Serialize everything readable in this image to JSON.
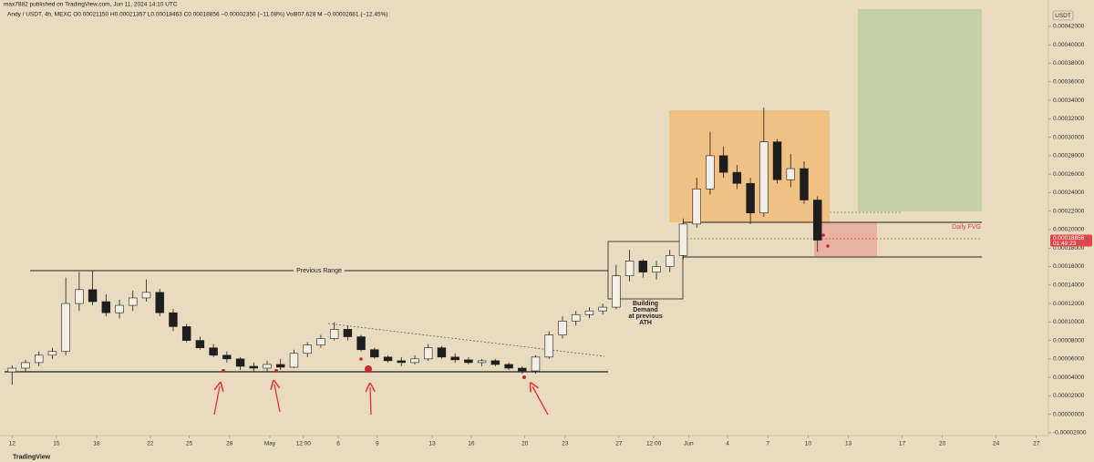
{
  "header": {
    "publisher": "max7882 published on TradingView.com, Jun 11, 2024 14:10 UTC",
    "legend": "Andy / USDT, 4h, MEXC  O0.00021150  H0.00021357  L0.00018463  C0.00018856  −0.00002350 (−11.08%)  Vol807.628 M  −0.00002681 (−12.45%)",
    "currency": "USDT",
    "brand": "TradingView"
  },
  "chart_data": {
    "type": "candlestick",
    "x": [
      0,
      1,
      2,
      3,
      4,
      5,
      6,
      7,
      8,
      9,
      10,
      11,
      12,
      13,
      14,
      15,
      16,
      17,
      18,
      19,
      20,
      21,
      22,
      23,
      24,
      25,
      26,
      27,
      28,
      29,
      30,
      31,
      32,
      33,
      34,
      35,
      36,
      37,
      38,
      39,
      40,
      41,
      42,
      43,
      44,
      45,
      46,
      47,
      48,
      49,
      50,
      51,
      52,
      53,
      54,
      55,
      56,
      57,
      58,
      59,
      60
    ],
    "open": [
      4.6e-05,
      5e-05,
      5.6e-05,
      6.4e-05,
      6.8e-05,
      0.00012,
      0.000135,
      0.000122,
      0.00011,
      0.000118,
      0.000126,
      0.000132,
      0.00011,
      9.5e-05,
      8e-05,
      7.2e-05,
      6.4e-05,
      6e-05,
      5.2e-05,
      5e-05,
      5.4e-05,
      5.1e-05,
      6.6e-05,
      7.5e-05,
      8.2e-05,
      9.2e-05,
      8.4e-05,
      7e-05,
      6.2e-05,
      5.8e-05,
      5.6e-05,
      6e-05,
      7.2e-05,
      6.2e-05,
      5.9e-05,
      5.6e-05,
      5.8e-05,
      5.4e-05,
      5e-05,
      4.7e-05,
      6.2e-05,
      8.6e-05,
      0.000101,
      0.000108,
      0.000112,
      0.000116,
      0.00015,
      0.000166,
      0.000154,
      0.00016,
      0.000172,
      0.000206,
      0.000244,
      0.00028,
      0.000262,
      0.00025,
      0.000218,
      0.000295,
      0.000254,
      0.000266,
      0.000232
    ],
    "high": [
      5.3e-05,
      5.9e-05,
      6.8e-05,
      7.2e-05,
      0.000148,
      0.000154,
      0.000156,
      0.00013,
      0.000124,
      0.000134,
      0.000146,
      0.000136,
      0.000114,
      9.8e-05,
      8.4e-05,
      7.6e-05,
      6.8e-05,
      6.2e-05,
      5.6e-05,
      5.8e-05,
      6e-05,
      7e-05,
      7.8e-05,
      8.6e-05,
      0.0001,
      9.6e-05,
      8.6e-05,
      7.2e-05,
      6.4e-05,
      6.2e-05,
      6.4e-05,
      7.6e-05,
      7.4e-05,
      6.6e-05,
      6.2e-05,
      6e-05,
      6e-05,
      5.6e-05,
      5.2e-05,
      6.4e-05,
      9e-05,
      0.000106,
      0.000112,
      0.000116,
      0.00012,
      0.000162,
      0.000178,
      0.000168,
      0.000166,
      0.000178,
      0.000212,
      0.000256,
      0.000306,
      0.00029,
      0.00027,
      0.000256,
      0.000332,
      0.000298,
      0.000282,
      0.000274,
      0.000236
    ],
    "low": [
      3.2e-05,
      4.6e-05,
      5.2e-05,
      6e-05,
      6.4e-05,
      0.000112,
      0.000118,
      0.000106,
      0.000104,
      0.000112,
      0.000122,
      0.000106,
      9e-05,
      7.8e-05,
      7e-05,
      6.2e-05,
      5.6e-05,
      4.8e-05,
      4.6e-05,
      4.6e-05,
      4.8e-05,
      5e-05,
      6.2e-05,
      7.2e-05,
      8e-05,
      8e-05,
      6.8e-05,
      6e-05,
      5.6e-05,
      5.2e-05,
      5.4e-05,
      5.8e-05,
      6e-05,
      5.6e-05,
      5.4e-05,
      5.2e-05,
      5.2e-05,
      4.8e-05,
      4.4e-05,
      4.4e-05,
      6e-05,
      8.2e-05,
      9.6e-05,
      0.000104,
      0.000108,
      0.000114,
      0.000144,
      0.000148,
      0.000146,
      0.000154,
      0.000168,
      0.000202,
      0.000238,
      0.000256,
      0.000244,
      0.000206,
      0.000214,
      0.00025,
      0.000246,
      0.000228,
      0.000176
    ],
    "close": [
      5e-05,
      5.6e-05,
      6.4e-05,
      6.8e-05,
      0.00012,
      0.000135,
      0.000122,
      0.00011,
      0.000118,
      0.000126,
      0.000132,
      0.00011,
      9.5e-05,
      8e-05,
      7.2e-05,
      6.4e-05,
      6e-05,
      5.2e-05,
      5e-05,
      5.4e-05,
      5.1e-05,
      6.6e-05,
      7.5e-05,
      8.2e-05,
      9.2e-05,
      8.4e-05,
      7e-05,
      6.2e-05,
      5.8e-05,
      5.6e-05,
      6e-05,
      7.2e-05,
      6.2e-05,
      5.9e-05,
      5.6e-05,
      5.8e-05,
      5.4e-05,
      5e-05,
      4.7e-05,
      6.2e-05,
      8.6e-05,
      0.000101,
      0.000108,
      0.000112,
      0.000116,
      0.00015,
      0.000166,
      0.000154,
      0.00016,
      0.000172,
      0.000206,
      0.000244,
      0.00028,
      0.000262,
      0.00025,
      0.000218,
      0.000295,
      0.000254,
      0.000266,
      0.000232,
      0.00018856
    ],
    "up_color": "#f4efe4",
    "down_color": "#1e1e1e",
    "xlim": [
      -0.9,
      77.2
    ],
    "xticks": [
      {
        "value": 0,
        "label": "12"
      },
      {
        "value": 3.3,
        "label": "15"
      },
      {
        "value": 6.3,
        "label": "18"
      },
      {
        "value": 10.3,
        "label": "22"
      },
      {
        "value": 13.2,
        "label": "25"
      },
      {
        "value": 16.2,
        "label": "28"
      },
      {
        "value": 19.2,
        "label": "May"
      },
      {
        "value": 21.7,
        "label": "12:00"
      },
      {
        "value": 24.3,
        "label": "6"
      },
      {
        "value": 27.2,
        "label": "9"
      },
      {
        "value": 31.3,
        "label": "13"
      },
      {
        "value": 34.2,
        "label": "16"
      },
      {
        "value": 38.2,
        "label": "20"
      },
      {
        "value": 41.2,
        "label": "23"
      },
      {
        "value": 45.2,
        "label": "27"
      },
      {
        "value": 47.8,
        "label": "12:00"
      },
      {
        "value": 50.4,
        "label": "Jun"
      },
      {
        "value": 53.3,
        "label": "4"
      },
      {
        "value": 56.3,
        "label": "7"
      },
      {
        "value": 59.3,
        "label": "10"
      },
      {
        "value": 62.3,
        "label": "13"
      },
      {
        "value": 66.3,
        "label": "17"
      },
      {
        "value": 69.3,
        "label": "20"
      },
      {
        "value": 73.3,
        "label": "24"
      },
      {
        "value": 76.3,
        "label": "27"
      }
    ],
    "ylim": [
      -2.3e-05,
      0.0004387
    ],
    "yticks": [
      {
        "value": 0.00042,
        "label": "0.00042000"
      },
      {
        "value": 0.0004,
        "label": "0.00040000"
      },
      {
        "value": 0.00038,
        "label": "0.00038000"
      },
      {
        "value": 0.00036,
        "label": "0.00036000"
      },
      {
        "value": 0.00034,
        "label": "0.00034000"
      },
      {
        "value": 0.00032,
        "label": "0.00032000"
      },
      {
        "value": 0.0003,
        "label": "0.00030000"
      },
      {
        "value": 0.00028,
        "label": "0.00028000"
      },
      {
        "value": 0.00026,
        "label": "0.00026000"
      },
      {
        "value": 0.00024,
        "label": "0.00024000"
      },
      {
        "value": 0.00022,
        "label": "0.00022000"
      },
      {
        "value": 0.0002,
        "label": "0.00020000"
      },
      {
        "value": 0.00018,
        "label": "0.00018000"
      },
      {
        "value": 0.00016,
        "label": "0.00016000"
      },
      {
        "value": 0.00014,
        "label": "0.00014000"
      },
      {
        "value": 0.00012,
        "label": "0.00012000"
      },
      {
        "value": 0.0001,
        "label": "0.00010000"
      },
      {
        "value": 8e-05,
        "label": "0.00008000"
      },
      {
        "value": 6e-05,
        "label": "0.00006000"
      },
      {
        "value": 4e-05,
        "label": "0.00004000"
      },
      {
        "value": 2e-05,
        "label": "0.00002000"
      },
      {
        "value": 0,
        "label": "0.00000000"
      },
      {
        "value": -2e-05,
        "label": "-0.00002000"
      }
    ],
    "last_price": {
      "value": 0.00018856,
      "label": "0.00018856",
      "countdown": "01:49:23"
    },
    "annotations": {
      "previous_range": "Previous Range",
      "building_demand": [
        "Building",
        "Demand",
        "at previous",
        "ATH"
      ],
      "daily_fvg": "Daily FVG"
    }
  }
}
